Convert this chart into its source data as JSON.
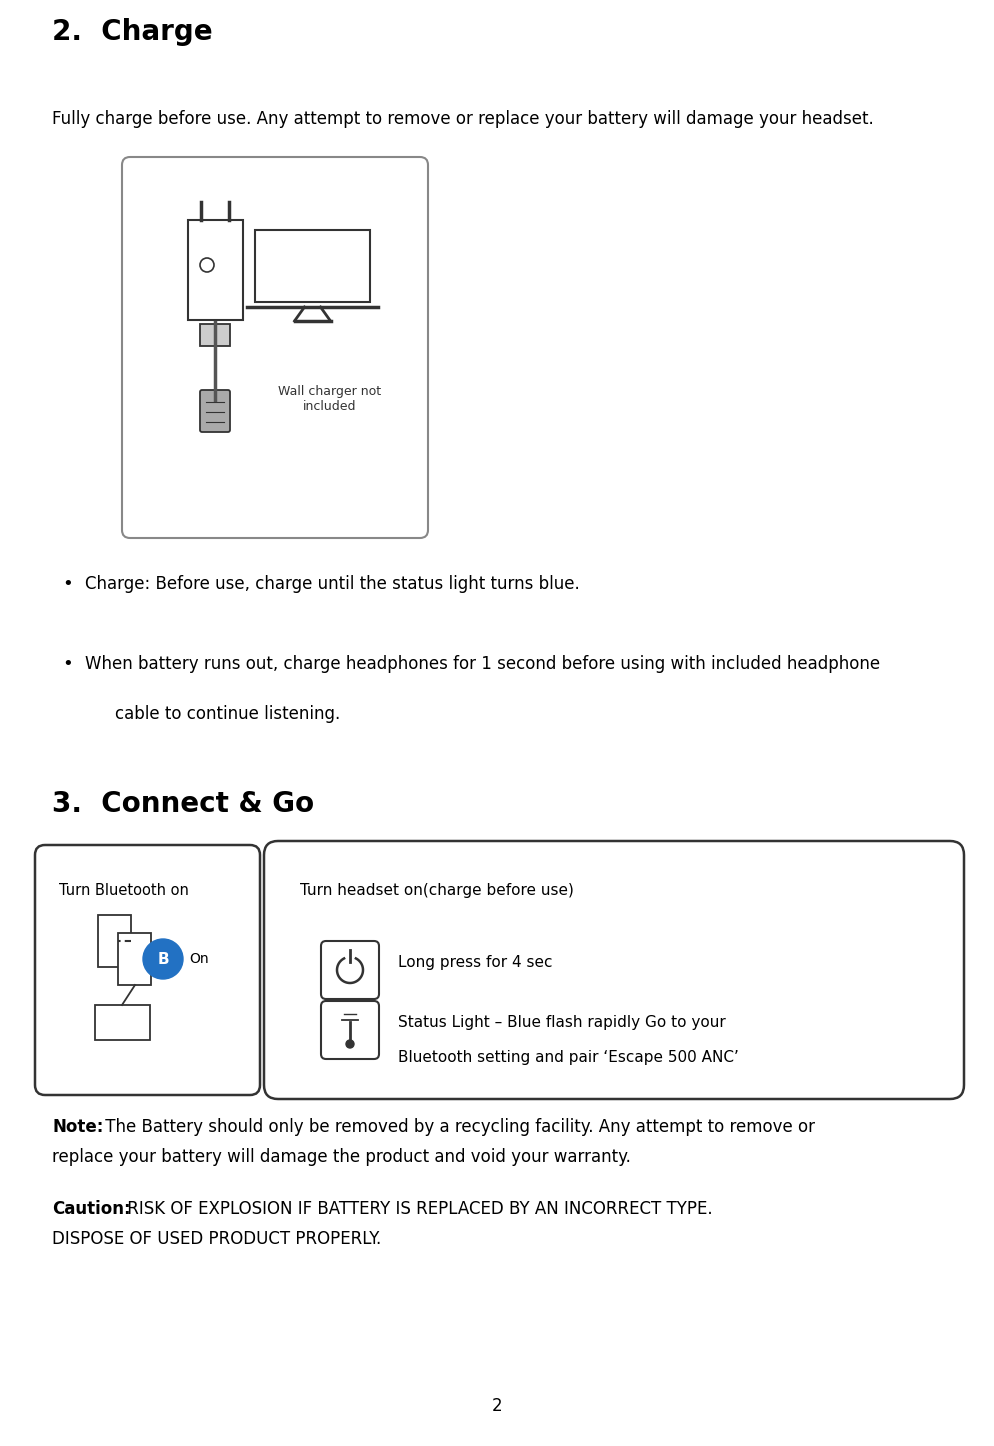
{
  "title": "2.  Charge",
  "section3_title": "3.  Connect & Go",
  "intro_text": "Fully charge before use. Any attempt to remove or replace your battery will damage your headset.",
  "bullet1": "Charge: Before use, charge until the status light turns blue.",
  "bullet2_line1": "When battery runs out, charge headphones for 1 second before using with included headphone",
  "bullet2_line2": "cable to continue listening.",
  "wall_charger_label": "Wall charger not\nincluded",
  "bt_box_title": "Turn Bluetooth on",
  "bt_box_on": "On",
  "headset_box_title": "Turn headset on(charge before use)",
  "headset_item1_text": "Long press for 4 sec",
  "headset_item2_line1": "Status Light – Blue flash rapidly Go to your",
  "headset_item2_line2": "Bluetooth setting and pair ‘Escape 500 ANC’",
  "note_bold": "Note:",
  "note_text": " The Battery should only be removed by a recycling facility. Any attempt to remove or",
  "note_text2": "replace your battery will damage the product and void your warranty.",
  "caution_bold": "Caution:",
  "caution_text": " RISK OF EXPLOSION IF BATTERY IS REPLACED BY AN INCORRECT TYPE.",
  "caution_text2": "DISPOSE OF USED PRODUCT PROPERLY.",
  "page_number": "2",
  "bg_color": "#ffffff",
  "text_color": "#000000",
  "box_edge_color": "#444444",
  "blue_color": "#2271c3"
}
